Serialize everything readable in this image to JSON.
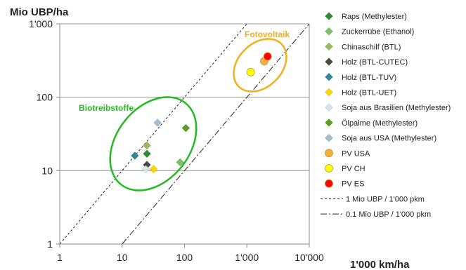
{
  "chart_data": {
    "type": "scatter",
    "title": "",
    "xlabel": "1'000 km/ha",
    "ylabel": "Mio UBP/ha",
    "xscale": "log",
    "yscale": "log",
    "xlim": [
      1,
      10000
    ],
    "ylim": [
      1,
      1000
    ],
    "xticks": [
      1,
      10,
      100,
      1000,
      10000
    ],
    "xtick_labels": [
      "1",
      "10",
      "100",
      "1'000",
      "10'000"
    ],
    "yticks": [
      1,
      10,
      100,
      1000
    ],
    "ytick_labels": [
      "1",
      "10",
      "100",
      "1'000"
    ],
    "grid": "horizontal",
    "legend_position": "right",
    "series": [
      {
        "name": "Raps (Methylester)",
        "marker": "diamond",
        "color": "#2e8b2e",
        "points": [
          [
            25,
            17
          ]
        ]
      },
      {
        "name": "Zuckerrübe (Ethanol)",
        "marker": "diamond",
        "color": "#7fbf6a",
        "points": [
          [
            85,
            13
          ]
        ]
      },
      {
        "name": "Chinaschilf (BTL)",
        "marker": "diamond",
        "color": "#9bbb59",
        "points": [
          [
            25,
            22
          ]
        ]
      },
      {
        "name": "Holz (BTL-CUTEC)",
        "marker": "diamond",
        "color": "#4a4a3a",
        "points": [
          [
            25,
            12
          ]
        ]
      },
      {
        "name": "Holz (BTL-TUV)",
        "marker": "diamond",
        "color": "#31859c",
        "points": [
          [
            16,
            16
          ]
        ]
      },
      {
        "name": "Holz (BTL-UET)",
        "marker": "diamond",
        "color": "#ffd700",
        "points": [
          [
            32,
            10.5
          ]
        ]
      },
      {
        "name": "Soja aus Brasilien (Methylester)",
        "marker": "diamond",
        "color": "#d6e4f0",
        "points": [
          [
            24,
            10.5
          ]
        ]
      },
      {
        "name": "Ölpalme (Methylester)",
        "marker": "diamond",
        "color": "#5a9e1e",
        "points": [
          [
            105,
            38
          ]
        ]
      },
      {
        "name": "Soja aus USA (Methylester)",
        "marker": "diamond",
        "color": "#a5bccf",
        "points": [
          [
            37,
            45
          ]
        ]
      },
      {
        "name": "PV USA",
        "marker": "circle",
        "color": "#f0b040",
        "points": [
          [
            1900,
            310
          ]
        ]
      },
      {
        "name": "PV CH",
        "marker": "circle",
        "color": "#ffff00",
        "points": [
          [
            1150,
            220
          ]
        ]
      },
      {
        "name": "PV ES",
        "marker": "circle",
        "color": "#ff0000",
        "points": [
          [
            2150,
            360
          ]
        ]
      }
    ],
    "reference_lines": [
      {
        "name": "1 Mio UBP / 1'000 pkm",
        "style": "dashed",
        "slope_factor": 1
      },
      {
        "name": "0.1 Mio UBP / 1'000 pkm",
        "style": "dashdot",
        "slope_factor": 0.1
      }
    ],
    "annotations": [
      {
        "text": "Biotreibstoffe",
        "color": "#22bb22"
      },
      {
        "text": "Fotovoltaik",
        "color": "#f0b020"
      }
    ]
  }
}
